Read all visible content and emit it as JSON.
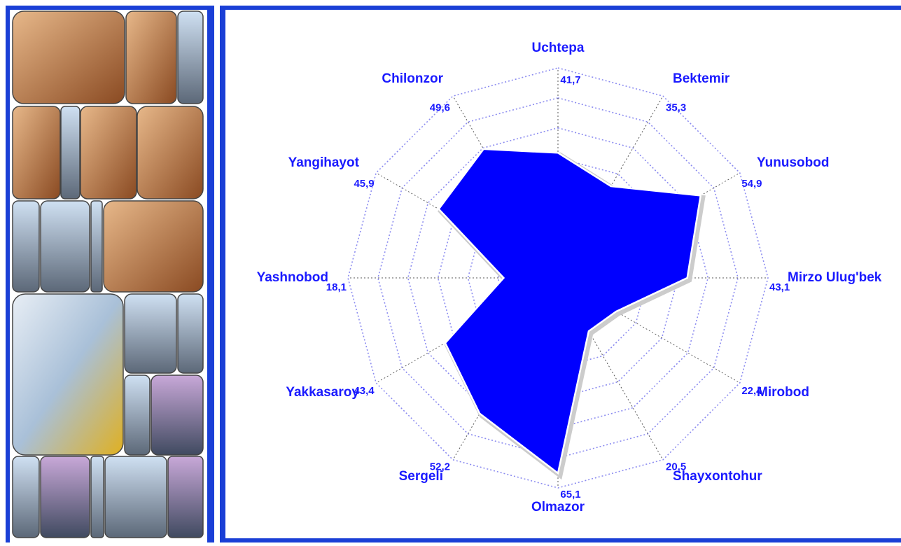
{
  "chart_data": {
    "type": "radar",
    "categories": [
      "Uchtepa",
      "Bektemir",
      "Yunusobod",
      "Mirzo Ulug'bek",
      "Mirobod",
      "Shayxontohur",
      "Olmazor",
      "Sergeli",
      "Yakkasaroy",
      "Yashnobod",
      "Yangihayot",
      "Chilonzor"
    ],
    "values": [
      41.7,
      35.3,
      54.9,
      43.1,
      22.4,
      20.5,
      65.1,
      52.2,
      43.4,
      18.1,
      45.9,
      49.6
    ],
    "value_labels": [
      "41,7",
      "35,3",
      "54,9",
      "43,1",
      "22,4",
      "20,5",
      "65,1",
      "52,2",
      "43,4",
      "18,1",
      "45,9",
      "49,6"
    ],
    "color": "#0000ff",
    "ylim": [
      0,
      70
    ],
    "yticks": [
      10,
      20,
      30,
      40,
      50,
      60,
      70
    ],
    "grid": true
  }
}
